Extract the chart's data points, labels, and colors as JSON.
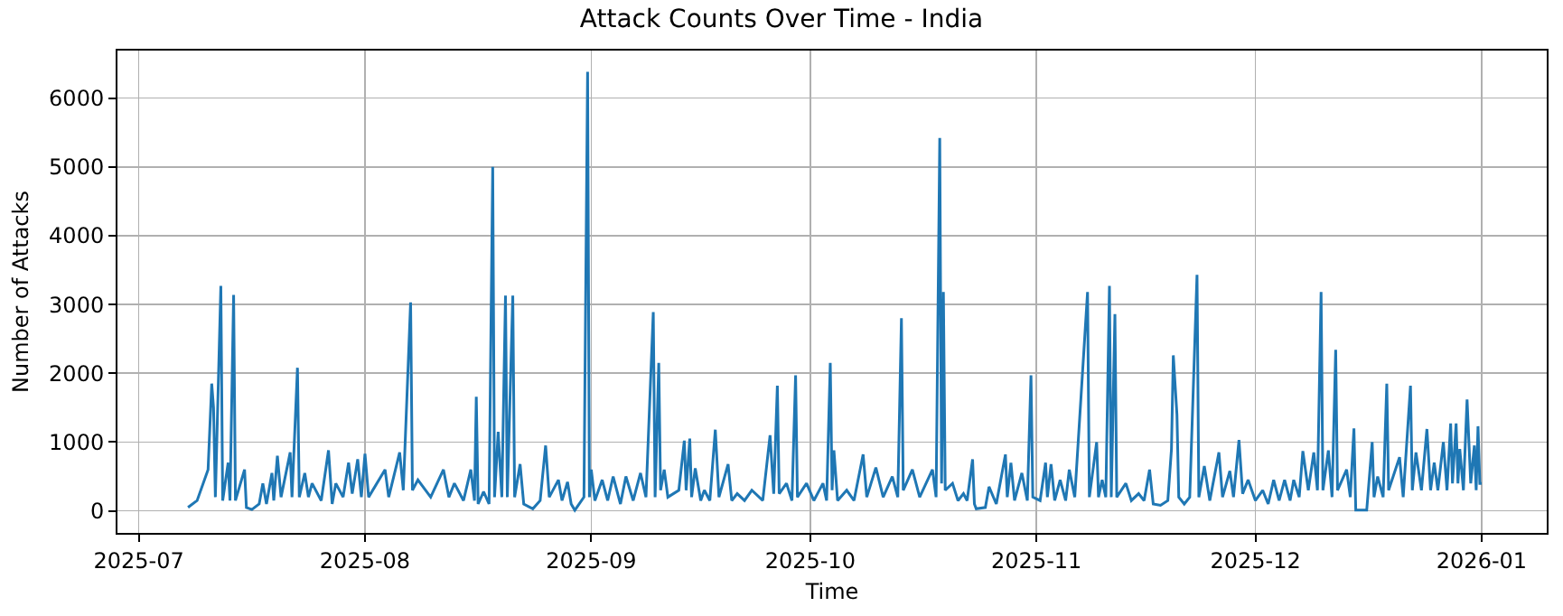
{
  "chart_data": {
    "type": "line",
    "title": "Attack Counts Over Time - India",
    "xlabel": "Time",
    "ylabel": "Number of Attacks",
    "x": [
      "2025-07-07T18:00",
      "2025-07-09T00:00",
      "2025-07-10T12:00",
      "2025-07-11T00:00",
      "2025-07-11T06:00",
      "2025-07-11T12:00",
      "2025-07-12T06:00",
      "2025-07-12T12:00",
      "2025-07-13T06:00",
      "2025-07-13T12:00",
      "2025-07-14T00:00",
      "2025-07-14T06:00",
      "2025-07-15T12:00",
      "2025-07-15T18:00",
      "2025-07-16T12:00",
      "2025-07-17T12:00",
      "2025-07-18T00:00",
      "2025-07-18T12:00",
      "2025-07-19T06:00",
      "2025-07-19T12:00",
      "2025-07-20T00:00",
      "2025-07-20T12:00",
      "2025-07-21T18:00",
      "2025-07-22T00:00",
      "2025-07-22T18:00",
      "2025-07-23T00:00",
      "2025-07-23T18:00",
      "2025-07-24T06:00",
      "2025-07-24T18:00",
      "2025-07-26T00:00",
      "2025-07-27T00:00",
      "2025-07-27T12:00",
      "2025-07-28T00:00",
      "2025-07-29T00:00",
      "2025-07-29T18:00",
      "2025-07-30T06:00",
      "2025-07-31T00:00",
      "2025-07-31T12:00",
      "2025-08-01T00:00",
      "2025-08-01T12:00",
      "2025-08-03T18:00",
      "2025-08-04T06:00",
      "2025-08-05T18:00",
      "2025-08-06T06:00",
      "2025-08-07T06:00",
      "2025-08-07T12:00",
      "2025-08-08T06:00",
      "2025-08-10T00:00",
      "2025-08-11T18:00",
      "2025-08-12T12:00",
      "2025-08-13T06:00",
      "2025-08-14T12:00",
      "2025-08-15T12:00",
      "2025-08-16T00:00",
      "2025-08-16T06:00",
      "2025-08-16T12:00",
      "2025-08-17T06:00",
      "2025-08-18T00:00",
      "2025-08-18T12:00",
      "2025-08-18T18:00",
      "2025-08-19T06:00",
      "2025-08-19T18:00",
      "2025-08-20T06:00",
      "2025-08-20T12:00",
      "2025-08-21T06:00",
      "2025-08-21T12:00",
      "2025-08-22T06:00",
      "2025-08-22T18:00",
      "2025-08-24T00:00",
      "2025-08-25T00:00",
      "2025-08-25T18:00",
      "2025-08-26T06:00",
      "2025-08-27T12:00",
      "2025-08-28T00:00",
      "2025-08-28T18:00",
      "2025-08-29T06:00",
      "2025-08-29T18:00",
      "2025-08-31T00:00",
      "2025-08-31T12:00",
      "2025-08-31T18:00",
      "2025-09-01T00:00",
      "2025-09-01T12:00",
      "2025-09-02T12:00",
      "2025-09-03T06:00",
      "2025-09-04T00:00",
      "2025-09-05T00:00",
      "2025-09-05T18:00",
      "2025-09-06T18:00",
      "2025-09-07T18:00",
      "2025-09-08T12:00",
      "2025-09-09T12:00",
      "2025-09-09T18:00",
      "2025-09-10T06:00",
      "2025-09-10T12:00",
      "2025-09-11T00:00",
      "2025-09-11T12:00",
      "2025-09-13T00:00",
      "2025-09-13T18:00",
      "2025-09-14T00:00",
      "2025-09-14T12:00",
      "2025-09-14T18:00",
      "2025-09-15T06:00",
      "2025-09-16T00:00",
      "2025-09-16T12:00",
      "2025-09-17T06:00",
      "2025-09-18T00:00",
      "2025-09-18T12:00",
      "2025-09-19T18:00",
      "2025-09-20T06:00",
      "2025-09-21T00:00",
      "2025-09-22T00:00",
      "2025-09-23T00:00",
      "2025-09-24T12:00",
      "2025-09-25T12:00",
      "2025-09-26T00:00",
      "2025-09-26T12:00",
      "2025-09-26T18:00",
      "2025-09-27T18:00",
      "2025-09-28T12:00",
      "2025-09-29T00:00",
      "2025-09-29T06:00",
      "2025-09-30T12:00",
      "2025-10-01T12:00",
      "2025-10-02T18:00",
      "2025-10-03T06:00",
      "2025-10-03T18:00",
      "2025-10-04T00:00",
      "2025-10-04T06:00",
      "2025-10-04T18:00",
      "2025-10-06T00:00",
      "2025-10-07T00:00",
      "2025-10-08T06:00",
      "2025-10-08T18:00",
      "2025-10-10T00:00",
      "2025-10-11T00:00",
      "2025-10-12T06:00",
      "2025-10-13T00:00",
      "2025-10-13T12:00",
      "2025-10-13T18:00",
      "2025-10-15T00:00",
      "2025-10-16T00:00",
      "2025-10-17T18:00",
      "2025-10-18T06:00",
      "2025-10-18T18:00",
      "2025-10-19T00:00",
      "2025-10-19T06:00",
      "2025-10-19T12:00",
      "2025-10-20T12:00",
      "2025-10-21T06:00",
      "2025-10-22T00:00",
      "2025-10-22T12:00",
      "2025-10-23T06:00",
      "2025-10-23T12:00",
      "2025-10-23T18:00",
      "2025-10-25T00:00",
      "2025-10-25T12:00",
      "2025-10-26T12:00",
      "2025-10-27T18:00",
      "2025-10-28T00:00",
      "2025-10-28T12:00",
      "2025-10-29T00:00",
      "2025-10-30T00:00",
      "2025-10-30T18:00",
      "2025-10-31T06:00",
      "2025-10-31T12:00",
      "2025-11-01T12:00",
      "2025-11-02T06:00",
      "2025-11-02T12:00",
      "2025-11-03T00:00",
      "2025-11-03T12:00",
      "2025-11-04T06:00",
      "2025-11-05T00:00",
      "2025-11-05T12:00",
      "2025-11-06T06:00",
      "2025-11-08T00:00",
      "2025-11-08T06:00",
      "2025-11-09T06:00",
      "2025-11-09T12:00",
      "2025-11-10T00:00",
      "2025-11-10T12:00",
      "2025-11-11T00:00",
      "2025-11-11T06:00",
      "2025-11-11T18:00",
      "2025-11-12T00:00",
      "2025-11-13T06:00",
      "2025-11-14T00:00",
      "2025-11-15T00:00",
      "2025-11-15T18:00",
      "2025-11-16T12:00",
      "2025-11-17T00:00",
      "2025-11-18T00:00",
      "2025-11-19T00:00",
      "2025-11-19T12:00",
      "2025-11-19T18:00",
      "2025-11-20T06:00",
      "2025-11-20T12:00",
      "2025-11-21T06:00",
      "2025-11-22T00:00",
      "2025-11-23T00:00",
      "2025-11-23T06:00",
      "2025-11-24T00:00",
      "2025-11-24T18:00",
      "2025-11-26T00:00",
      "2025-11-26T12:00",
      "2025-11-27T12:00",
      "2025-11-28T00:00",
      "2025-11-28T18:00",
      "2025-11-29T06:00",
      "2025-11-30T00:00",
      "2025-12-01T00:00",
      "2025-12-02T00:00",
      "2025-12-02T18:00",
      "2025-12-03T12:00",
      "2025-12-04T06:00",
      "2025-12-05T00:00",
      "2025-12-05T18:00",
      "2025-12-06T06:00",
      "2025-12-07T00:00",
      "2025-12-07T12:00",
      "2025-12-08T06:00",
      "2025-12-09T00:00",
      "2025-12-09T12:00",
      "2025-12-10T00:00",
      "2025-12-10T06:00",
      "2025-12-11T00:00",
      "2025-12-11T12:00",
      "2025-12-12T00:00",
      "2025-12-12T06:00",
      "2025-12-13T12:00",
      "2025-12-14T00:00",
      "2025-12-14T12:00",
      "2025-12-14T18:00",
      "2025-12-16T06:00",
      "2025-12-17T00:00",
      "2025-12-17T06:00",
      "2025-12-17T18:00",
      "2025-12-18T12:00",
      "2025-12-19T00:00",
      "2025-12-19T06:00",
      "2025-12-20T18:00",
      "2025-12-21T06:00",
      "2025-12-22T06:00",
      "2025-12-22T12:00",
      "2025-12-23T00:00",
      "2025-12-23T18:00",
      "2025-12-24T12:00",
      "2025-12-25T00:00",
      "2025-12-25T12:00",
      "2025-12-26T00:00",
      "2025-12-26T18:00",
      "2025-12-27T06:00",
      "2025-12-27T18:00",
      "2025-12-28T00:00",
      "2025-12-28T12:00",
      "2025-12-28T18:00",
      "2025-12-29T00:00",
      "2025-12-29T12:00",
      "2025-12-30T00:00",
      "2025-12-30T12:00",
      "2025-12-31T00:00",
      "2025-12-31T06:00",
      "2025-12-31T12:00",
      "2025-12-31T18:00",
      "2026-01-01T00:00"
    ],
    "series": [
      {
        "color": "#1f77b4",
        "values": [
          50,
          150,
          600,
          1850,
          1500,
          200,
          3270,
          150,
          700,
          150,
          3140,
          150,
          600,
          50,
          20,
          100,
          400,
          100,
          550,
          150,
          800,
          200,
          850,
          200,
          2080,
          200,
          550,
          200,
          400,
          150,
          880,
          100,
          400,
          200,
          700,
          250,
          750,
          200,
          830,
          200,
          600,
          200,
          850,
          300,
          3030,
          300,
          450,
          200,
          600,
          200,
          400,
          150,
          600,
          150,
          1660,
          100,
          280,
          100,
          5000,
          200,
          1150,
          200,
          3130,
          200,
          3130,
          200,
          680,
          100,
          30,
          150,
          950,
          200,
          450,
          150,
          420,
          100,
          10,
          200,
          6380,
          200,
          600,
          150,
          450,
          150,
          500,
          100,
          500,
          150,
          550,
          200,
          2890,
          200,
          2150,
          300,
          600,
          200,
          300,
          1020,
          300,
          1050,
          200,
          620,
          150,
          300,
          150,
          1180,
          200,
          680,
          150,
          250,
          150,
          300,
          150,
          1100,
          250,
          1820,
          250,
          400,
          150,
          1970,
          200,
          400,
          150,
          400,
          150,
          2150,
          300,
          880,
          150,
          300,
          150,
          820,
          200,
          630,
          200,
          500,
          200,
          2800,
          300,
          600,
          200,
          600,
          200,
          5420,
          400,
          3180,
          300,
          400,
          150,
          250,
          150,
          750,
          100,
          30,
          50,
          350,
          100,
          820,
          200,
          700,
          150,
          550,
          150,
          1970,
          200,
          150,
          700,
          200,
          680,
          150,
          450,
          150,
          600,
          200,
          3180,
          200,
          1000,
          200,
          450,
          200,
          3270,
          200,
          2860,
          200,
          400,
          150,
          250,
          150,
          600,
          100,
          80,
          150,
          900,
          2260,
          1400,
          200,
          100,
          200,
          3430,
          200,
          650,
          150,
          850,
          200,
          580,
          200,
          1030,
          250,
          450,
          150,
          300,
          100,
          450,
          150,
          450,
          150,
          450,
          200,
          870,
          300,
          850,
          300,
          3180,
          300,
          880,
          200,
          2340,
          300,
          600,
          200,
          1200,
          10,
          10,
          1000,
          200,
          500,
          200,
          1850,
          300,
          780,
          200,
          1820,
          300,
          850,
          300,
          1190,
          300,
          700,
          300,
          1000,
          300,
          1270,
          400,
          1270,
          400,
          900,
          300,
          1620,
          400,
          950,
          300,
          1230,
          400,
          400
        ]
      }
    ],
    "xlim": [
      "2025-06-28T02:00",
      "2026-01-09T22:00"
    ],
    "xticks": [
      {
        "value": "2025-07-01",
        "label": "2025-07"
      },
      {
        "value": "2025-08-01",
        "label": "2025-08"
      },
      {
        "value": "2025-09-01",
        "label": "2025-09"
      },
      {
        "value": "2025-10-01",
        "label": "2025-10"
      },
      {
        "value": "2025-11-01",
        "label": "2025-11"
      },
      {
        "value": "2025-12-01",
        "label": "2025-12"
      },
      {
        "value": "2026-01-01",
        "label": "2026-01"
      }
    ],
    "ylim": [
      -320,
      6690
    ],
    "yticks": [
      0,
      1000,
      2000,
      3000,
      4000,
      5000,
      6000
    ],
    "grid": true
  }
}
